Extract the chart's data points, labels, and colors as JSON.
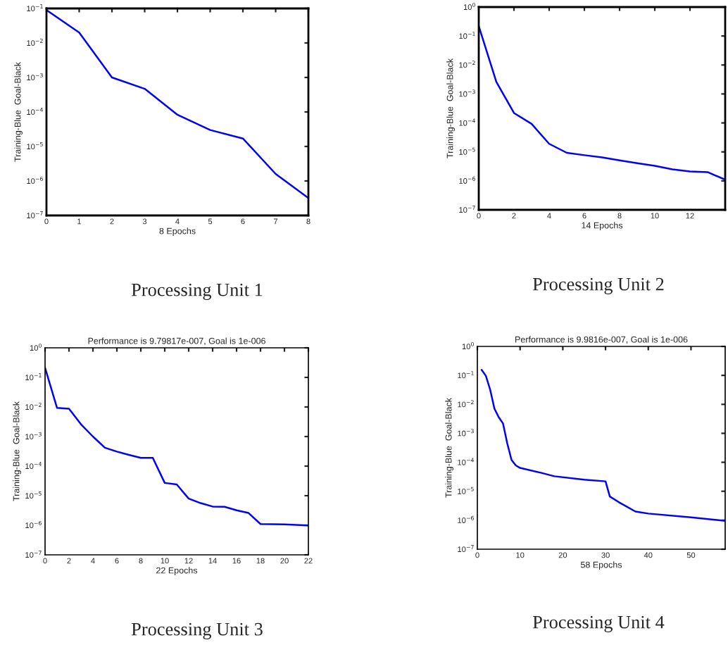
{
  "chart_data": [
    {
      "type": "line",
      "xlabel": "8 Epochs",
      "ylabel": "Training-Blue  Goal-Black",
      "annotations": [
        "Processing Unit 1"
      ],
      "log": true,
      "grid": false,
      "xlim": [
        0,
        8
      ],
      "xticks": [
        0,
        1,
        2,
        3,
        4,
        5,
        6,
        7,
        8
      ],
      "ylim": [
        1e-07,
        0.1
      ],
      "yticks": [
        {
          "value": 1e-07,
          "label": "10$^{−7}$"
        },
        {
          "value": 1e-06,
          "label": "10$^{−6}$"
        },
        {
          "value": 1e-05,
          "label": "10$^{−5}$"
        },
        {
          "value": 0.0001,
          "label": "10$^{−4}$"
        },
        {
          "value": 0.001,
          "label": "10$^{−3}$"
        },
        {
          "value": 0.01,
          "label": "10$^{−2}$"
        },
        {
          "value": 0.1,
          "label": "10$^{−1}$"
        }
      ],
      "series": [
        {
          "color": "#0000ff",
          "x": [
            0,
            1,
            2,
            3,
            4,
            5,
            6,
            7,
            8
          ],
          "values": [
            0.09,
            0.02,
            0.001,
            0.00047,
            8.3e-05,
            3e-05,
            1.7e-05,
            1.6e-06,
            3.2e-07
          ]
        }
      ]
    },
    {
      "type": "line",
      "xlabel": "14 Epochs",
      "ylabel": "Training-Blue  Goal-Black",
      "annotations": [
        "Processing Unit 2"
      ],
      "log": true,
      "grid": false,
      "xlim": [
        0,
        14
      ],
      "xticks": [
        0,
        2,
        4,
        6,
        8,
        10,
        12
      ],
      "ylim": [
        1e-07,
        1
      ],
      "yticks": [
        {
          "value": 1e-07,
          "label": "10$^{−7}$"
        },
        {
          "value": 1e-06,
          "label": "10$^{−6}$"
        },
        {
          "value": 1e-05,
          "label": "10$^{−5}$"
        },
        {
          "value": 0.0001,
          "label": "10$^{−4}$"
        },
        {
          "value": 0.001,
          "label": "10$^{−3}$"
        },
        {
          "value": 0.01,
          "label": "10$^{−2}$"
        },
        {
          "value": 0.1,
          "label": "10$^{−1}$"
        },
        {
          "value": 1,
          "label": "10$^{0}$"
        }
      ],
      "series": [
        {
          "color": "#0000ff",
          "x": [
            0,
            1,
            2,
            3,
            4,
            5,
            6,
            7,
            8,
            9,
            10,
            11,
            12,
            13,
            14
          ],
          "values": [
            0.22,
            0.0026,
            0.00022,
            9.3e-05,
            1.9e-05,
            9.3e-06,
            7.7e-06,
            6.5e-06,
            5.1e-06,
            4.1e-06,
            3.3e-06,
            2.5e-06,
            2.1e-06,
            2e-06,
            1.1e-06
          ]
        }
      ]
    },
    {
      "type": "line",
      "title": "Performance is 9.79817e-007, Goal is 1e-006",
      "xlabel": "22 Epochs",
      "ylabel": "Training-Blue  Goal-Black",
      "annotations": [
        "Processing Unit 3"
      ],
      "log": true,
      "grid": false,
      "xlim": [
        0,
        22
      ],
      "xticks": [
        0,
        2,
        4,
        6,
        8,
        10,
        12,
        14,
        16,
        18,
        20,
        22
      ],
      "ylim": [
        1e-07,
        1
      ],
      "yticks": [
        {
          "value": 1e-07,
          "label": "10$^{−7}$"
        },
        {
          "value": 1e-06,
          "label": "10$^{−6}$"
        },
        {
          "value": 1e-05,
          "label": "10$^{−5}$"
        },
        {
          "value": 0.0001,
          "label": "10$^{−4}$"
        },
        {
          "value": 0.001,
          "label": "10$^{−3}$"
        },
        {
          "value": 0.01,
          "label": "10$^{−2}$"
        },
        {
          "value": 0.1,
          "label": "10$^{−1}$"
        },
        {
          "value": 1,
          "label": "10$^{0}$"
        }
      ],
      "series": [
        {
          "color": "#0000ff",
          "x": [
            0,
            1,
            2,
            3,
            4,
            5,
            6,
            7,
            8,
            9,
            10,
            11,
            12,
            13,
            14,
            15,
            16,
            17,
            18,
            20,
            22
          ],
          "values": [
            0.21,
            0.0093,
            0.0087,
            0.0026,
            0.001,
            0.00042,
            0.00031,
            0.00024,
            0.00019,
            0.00019,
            2.7e-05,
            2.4e-05,
            8e-06,
            5.6e-06,
            4.3e-06,
            4.2e-06,
            3.2e-06,
            2.6e-06,
            1.1e-06,
            1.07e-06,
            9.8e-07
          ]
        }
      ]
    },
    {
      "type": "line",
      "title": "Performance is 9.9816e-007, Goal is 1e-006",
      "xlabel": "58 Epochs",
      "ylabel": "Training-Blue  Goal-Black",
      "annotations": [
        "Processing Unit 4"
      ],
      "log": true,
      "grid": false,
      "xlim": [
        0,
        58
      ],
      "xticks": [
        0,
        10,
        20,
        30,
        40,
        50
      ],
      "ylim": [
        1e-07,
        1
      ],
      "yticks": [
        {
          "value": 1e-07,
          "label": "10$^{−7}$"
        },
        {
          "value": 1e-06,
          "label": "10$^{−6}$"
        },
        {
          "value": 1e-05,
          "label": "10$^{−5}$"
        },
        {
          "value": 0.0001,
          "label": "10$^{−4}$"
        },
        {
          "value": 0.001,
          "label": "10$^{−3}$"
        },
        {
          "value": 0.01,
          "label": "10$^{−2}$"
        },
        {
          "value": 0.1,
          "label": "10$^{−1}$"
        },
        {
          "value": 1,
          "label": "10$^{0}$"
        }
      ],
      "series": [
        {
          "color": "#0000ff",
          "x": [
            1,
            2,
            3,
            4,
            5,
            6,
            7,
            8,
            9,
            10,
            15,
            18,
            25,
            30,
            31,
            33,
            37,
            40,
            50,
            58
          ],
          "values": [
            0.155,
            0.096,
            0.032,
            0.0071,
            0.0036,
            0.0022,
            0.00045,
            0.00012,
            7.8e-05,
            6.4e-05,
            4.3e-05,
            3.3e-05,
            2.5e-05,
            2.2e-05,
            6.6e-06,
            4.3e-06,
            2e-06,
            1.7e-06,
            1.26e-06,
            9.5e-07
          ]
        }
      ]
    }
  ]
}
